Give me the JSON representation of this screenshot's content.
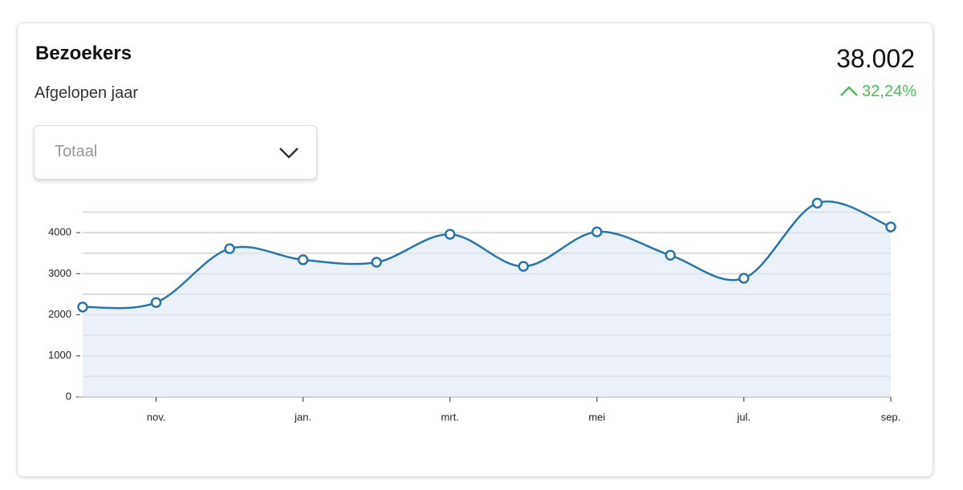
{
  "card": {
    "title": "Bezoekers",
    "subtitle": "Afgelopen jaar",
    "total": "38.002",
    "change": "32,24%",
    "change_color": "#4cbb5a",
    "dropdown": "Totaal"
  },
  "chart_data": {
    "type": "line",
    "categories": [
      null,
      "nov.",
      null,
      "jan.",
      null,
      "mrt.",
      null,
      "mei",
      null,
      "jul.",
      null,
      "sep."
    ],
    "series": [
      {
        "color": "#2a74ab",
        "values": [
          2190,
          2300,
          3610,
          3340,
          3280,
          3960,
          3180,
          4020,
          3450,
          2890,
          4720,
          4140
        ]
      }
    ],
    "ylim": [
      0,
      4500
    ],
    "yticks": [
      0,
      1000,
      2000,
      3000,
      4000
    ],
    "minor_yticks": [
      500,
      1500,
      2500,
      3500,
      4500
    ],
    "grid": true,
    "area": true,
    "smooth": true
  }
}
